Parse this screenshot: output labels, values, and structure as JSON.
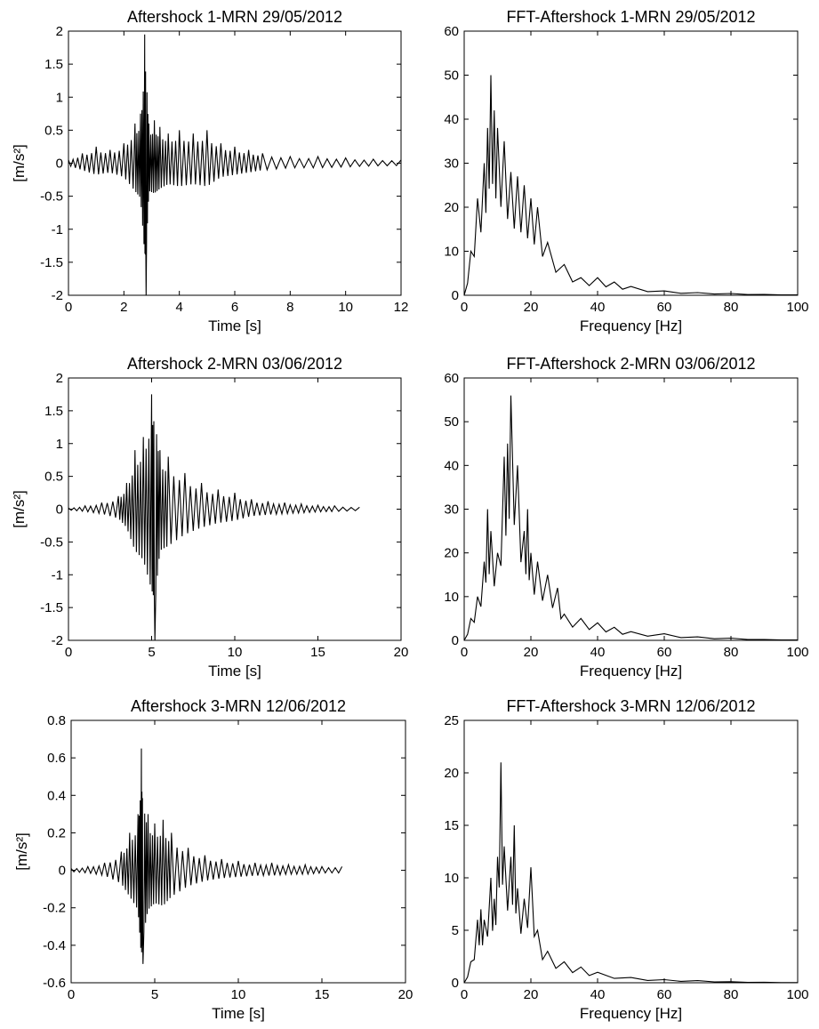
{
  "chart_data": [
    {
      "type": "line",
      "title": "Aftershock 1-MRN 29/05/2012",
      "xlabel": "Time [s]",
      "ylabel": "[m/s²]",
      "xlim": [
        0,
        12
      ],
      "ylim": [
        -2,
        2
      ],
      "xticks": [
        "0",
        "2",
        "4",
        "6",
        "8",
        "10",
        "12"
      ],
      "yticks": [
        "-2",
        "-1.5",
        "-1",
        "-0.5",
        "0",
        "0.5",
        "1",
        "1.5",
        "2"
      ],
      "grid": false,
      "series": [
        {
          "x": [
            0,
            0.5,
            1.0,
            1.5,
            2.0,
            2.4,
            2.6,
            2.75,
            2.8,
            2.9,
            3.1,
            3.3,
            3.6,
            4.0,
            4.5,
            5.0,
            5.5,
            6.0,
            6.5,
            7.0,
            8.0,
            9.0,
            10.0,
            11.0,
            12.0
          ],
          "y": [
            0.05,
            0.15,
            0.25,
            0.2,
            0.3,
            0.6,
            0.75,
            1.95,
            -2.0,
            0.6,
            0.65,
            0.55,
            0.45,
            0.5,
            0.45,
            0.5,
            0.3,
            0.25,
            0.2,
            0.15,
            0.1,
            0.1,
            0.08,
            0.06,
            0.05
          ]
        }
      ]
    },
    {
      "type": "line",
      "title": "FFT-Aftershock 1-MRN 29/05/2012",
      "xlabel": "Frequency [Hz]",
      "ylabel": "",
      "xlim": [
        0,
        100
      ],
      "ylim": [
        0,
        60
      ],
      "xticks": [
        "0",
        "20",
        "40",
        "60",
        "80",
        "100"
      ],
      "yticks": [
        "0",
        "10",
        "20",
        "30",
        "40",
        "50",
        "60"
      ],
      "grid": false,
      "series": [
        {
          "x": [
            0,
            2,
            4,
            6,
            7,
            8,
            9,
            10,
            12,
            14,
            16,
            18,
            20,
            22,
            25,
            30,
            35,
            40,
            45,
            50,
            60,
            70,
            80,
            90,
            100
          ],
          "y": [
            0,
            10,
            22,
            30,
            38,
            50,
            42,
            38,
            35,
            28,
            27,
            25,
            22,
            20,
            12,
            7,
            4,
            4,
            3,
            2,
            1,
            0.6,
            0.4,
            0.2,
            0.1
          ]
        }
      ]
    },
    {
      "type": "line",
      "title": "Aftershock 2-MRN 03/06/2012",
      "xlabel": "Time [s]",
      "ylabel": "[m/s²]",
      "xlim": [
        0,
        20
      ],
      "ylim": [
        -2,
        2
      ],
      "xticks": [
        "0",
        "5",
        "10",
        "15",
        "20"
      ],
      "yticks": [
        "-2",
        "-1.5",
        "-1",
        "-0.5",
        "0",
        "0.5",
        "1",
        "1.5",
        "2"
      ],
      "grid": false,
      "series": [
        {
          "x": [
            0,
            1,
            2,
            3,
            3.5,
            4,
            4.5,
            5.0,
            5.2,
            5.5,
            6,
            7,
            8,
            9,
            10,
            11,
            12,
            13,
            14,
            15,
            16,
            17.5
          ],
          "y": [
            0.02,
            0.05,
            0.1,
            0.2,
            0.4,
            0.9,
            1.1,
            1.75,
            -2.0,
            0.9,
            0.8,
            0.55,
            0.4,
            0.3,
            0.25,
            0.15,
            0.12,
            0.1,
            0.08,
            0.06,
            0.05,
            0.03
          ]
        }
      ]
    },
    {
      "type": "line",
      "title": "FFT-Aftershock 2-MRN 03/06/2012",
      "xlabel": "Frequency [Hz]",
      "ylabel": "",
      "xlim": [
        0,
        100
      ],
      "ylim": [
        0,
        60
      ],
      "xticks": [
        "0",
        "20",
        "40",
        "60",
        "80",
        "100"
      ],
      "yticks": [
        "0",
        "10",
        "20",
        "30",
        "40",
        "50",
        "60"
      ],
      "grid": false,
      "series": [
        {
          "x": [
            0,
            2,
            4,
            6,
            7,
            8,
            10,
            12,
            13,
            14,
            16,
            18,
            19,
            20,
            22,
            25,
            28,
            30,
            35,
            40,
            45,
            50,
            60,
            70,
            80,
            90,
            100
          ],
          "y": [
            0,
            5,
            10,
            18,
            30,
            25,
            20,
            42,
            45,
            56,
            40,
            25,
            30,
            20,
            18,
            15,
            12,
            6,
            5,
            4,
            3,
            2,
            1.5,
            0.8,
            0.5,
            0.2,
            0.1
          ]
        }
      ]
    },
    {
      "type": "line",
      "title": "Aftershock 3-MRN 12/06/2012",
      "xlabel": "Time [s]",
      "ylabel": "[m/s²]",
      "xlim": [
        0,
        20
      ],
      "ylim": [
        -0.6,
        0.8
      ],
      "xticks": [
        "0",
        "5",
        "10",
        "15",
        "20"
      ],
      "yticks": [
        "-0.6",
        "-0.4",
        "-0.2",
        "0",
        "0.2",
        "0.4",
        "0.6",
        "0.8"
      ],
      "grid": false,
      "series": [
        {
          "x": [
            0,
            1,
            2,
            3,
            3.5,
            4.0,
            4.2,
            4.3,
            4.6,
            5,
            5.5,
            6,
            7,
            8,
            9,
            10,
            11,
            12,
            13,
            14,
            15,
            16.2
          ],
          "y": [
            0.01,
            0.02,
            0.04,
            0.1,
            0.2,
            0.3,
            0.65,
            -0.5,
            0.3,
            0.25,
            0.27,
            0.2,
            0.12,
            0.08,
            0.06,
            0.05,
            0.04,
            0.04,
            0.03,
            0.03,
            0.02,
            0.02
          ]
        }
      ]
    },
    {
      "type": "line",
      "title": "FFT-Aftershock 3-MRN 12/06/2012",
      "xlabel": "Frequency [Hz]",
      "ylabel": "",
      "xlim": [
        0,
        100
      ],
      "ylim": [
        0,
        25
      ],
      "xticks": [
        "0",
        "20",
        "40",
        "60",
        "80",
        "100"
      ],
      "yticks": [
        "0",
        "5",
        "10",
        "15",
        "20",
        "25"
      ],
      "grid": false,
      "series": [
        {
          "x": [
            0,
            2,
            4,
            5,
            6,
            8,
            9,
            10,
            11,
            12,
            14,
            15,
            16,
            18,
            20,
            22,
            25,
            30,
            35,
            40,
            50,
            60,
            70,
            80,
            90,
            100
          ],
          "y": [
            0,
            2,
            6,
            7,
            6,
            10,
            8,
            12,
            21,
            13,
            12,
            15,
            9,
            8,
            11,
            5,
            3,
            2,
            1.5,
            1,
            0.5,
            0.3,
            0.2,
            0.1,
            0.05,
            0.02
          ]
        }
      ]
    }
  ]
}
